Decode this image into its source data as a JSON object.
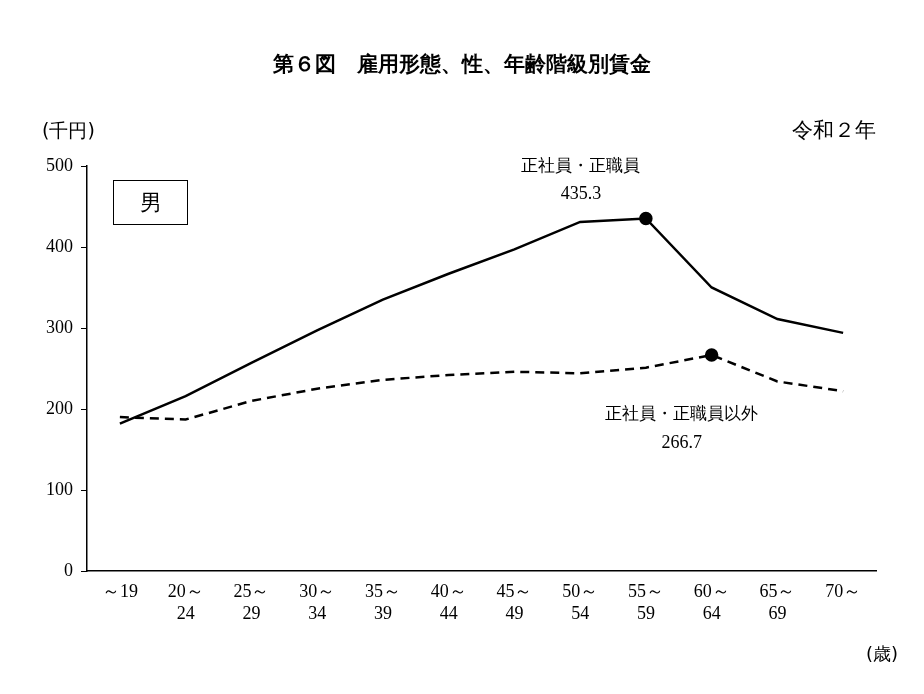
{
  "chart_data": {
    "type": "line",
    "title": "第６図　雇用形態、性、年齢階級別賃金",
    "subtitle": "令和２年",
    "panel_label": "男",
    "y_label": "(千円)",
    "x_label": "(歳)",
    "categories": [
      "～19",
      "20～24",
      "25～29",
      "30～34",
      "35～39",
      "40～44",
      "45～49",
      "50～54",
      "55～59",
      "60～64",
      "65～69",
      "70～"
    ],
    "series": [
      {
        "name": "正社員・正職員",
        "color": "#000000",
        "line_style": "solid",
        "marker": "none",
        "values": [
          182,
          216,
          257,
          297,
          335,
          367,
          397,
          431,
          435.3,
          350,
          311,
          294
        ]
      },
      {
        "name": "正社員・正職員以外",
        "color": "#000000",
        "line_style": "dashed",
        "marker": "none",
        "values": [
          190,
          187,
          210,
          225,
          236,
          242,
          246,
          244,
          251,
          266.7,
          234,
          222
        ]
      }
    ],
    "annotations": [
      {
        "series": "正社員・正職員",
        "category": "55～59",
        "value": 435.3
      },
      {
        "series": "正社員・正職員以外",
        "category": "60～64",
        "value": 266.7
      }
    ],
    "ylim": [
      0,
      500
    ],
    "yticks": [
      0,
      100,
      200,
      300,
      400,
      500
    ],
    "grid": false
  }
}
